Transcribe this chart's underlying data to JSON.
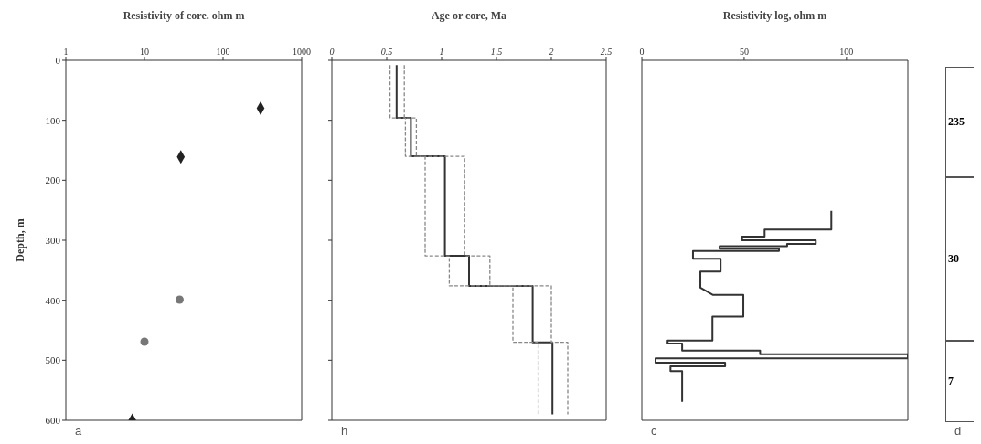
{
  "chart_data": [
    {
      "type": "scatter",
      "title": "Resistivity of core. ohm m",
      "ylabel": "Depth, m",
      "log": "x",
      "xlim": [
        1,
        1000
      ],
      "xticks": [
        1,
        10,
        100,
        1000
      ],
      "ylim": [
        600,
        0
      ],
      "yticks": [
        0,
        100,
        200,
        300,
        400,
        500,
        600
      ],
      "annotations": [
        "a"
      ],
      "series": [
        {
          "color": "#222222",
          "marker": "diamond",
          "x": [
            300,
            29,
            7
          ],
          "values": [
            80,
            161,
            600
          ]
        },
        {
          "color": "#777777",
          "marker": "circle",
          "x": [
            28,
            10
          ],
          "values": [
            399,
            469
          ]
        }
      ]
    },
    {
      "type": "line",
      "title": "Age or core, Ma",
      "xlim": [
        0,
        2.5
      ],
      "xticks": [
        0,
        0.5,
        1,
        1.5,
        2,
        2.5
      ],
      "ylim": [
        600,
        0
      ],
      "yticks": [
        {
          "value": 0,
          "label": null
        },
        {
          "value": 100,
          "label": null
        },
        {
          "value": 200,
          "label": null
        },
        {
          "value": 300,
          "label": null
        },
        {
          "value": 400,
          "label": null
        },
        {
          "value": 500,
          "label": null
        },
        {
          "value": 600,
          "label": null
        }
      ],
      "tick_labels": "x",
      "annotations": [
        "h"
      ],
      "series": [
        {
          "color": "#333333",
          "line_style": "solid",
          "x": [
            0.59,
            0.59,
            0.72,
            0.72,
            1.03,
            1.03,
            1.25,
            1.25,
            1.83,
            1.83,
            2.01,
            2.01
          ],
          "values": [
            8,
            96,
            96,
            160,
            160,
            326,
            326,
            376,
            376,
            470,
            470,
            590
          ]
        },
        {
          "color": "#888888",
          "line_style": "dashed",
          "x": [
            0.53,
            0.53,
            0.67,
            0.67,
            0.85,
            0.85,
            1.07,
            1.07,
            1.65,
            1.65,
            1.88,
            1.88
          ],
          "values": [
            8,
            96,
            96,
            160,
            160,
            326,
            326,
            376,
            376,
            470,
            470,
            590
          ]
        },
        {
          "color": "#888888",
          "line_style": "dashed",
          "x": [
            0.66,
            0.66,
            0.77,
            0.77,
            1.21,
            1.21,
            1.44,
            1.44,
            2.0,
            2.0,
            2.15,
            2.15
          ],
          "values": [
            8,
            96,
            96,
            160,
            160,
            326,
            326,
            376,
            376,
            470,
            470,
            590
          ]
        }
      ]
    },
    {
      "type": "line",
      "title": "Resistivity log, ohm m",
      "xlim": [
        0,
        130
      ],
      "xticks": [
        0,
        50,
        100
      ],
      "ylim": [
        600,
        0
      ],
      "tick_labels": "x",
      "annotations": [
        "c"
      ],
      "series": [
        {
          "color": "#333333",
          "line_style": "solid",
          "x": [
            92.6,
            92.6,
            60,
            60,
            49,
            49,
            85,
            85,
            71,
            71,
            38,
            38,
            67,
            67,
            25,
            25,
            38.5,
            38.5,
            28.6,
            28.6,
            34.8,
            49.6,
            49.6,
            34.5,
            34.5,
            12.6,
            12.6,
            19.7,
            19.7,
            57.8,
            57.8,
            130,
            130,
            6.7,
            6.7,
            40.7,
            40.7,
            14,
            14,
            19.7,
            19.7
          ],
          "values": [
            251,
            282,
            282,
            294,
            294,
            300,
            300,
            306,
            306,
            310,
            310,
            314,
            314,
            318,
            318,
            331,
            331,
            352,
            352,
            379,
            391,
            391,
            427,
            427,
            467,
            467,
            472,
            472,
            484,
            484,
            490,
            490,
            497,
            497,
            504,
            504,
            510,
            510,
            518,
            518,
            569
          ]
        }
      ]
    },
    {
      "type": "other",
      "annotations": [
        "235",
        "30",
        "7",
        "d"
      ]
    }
  ]
}
